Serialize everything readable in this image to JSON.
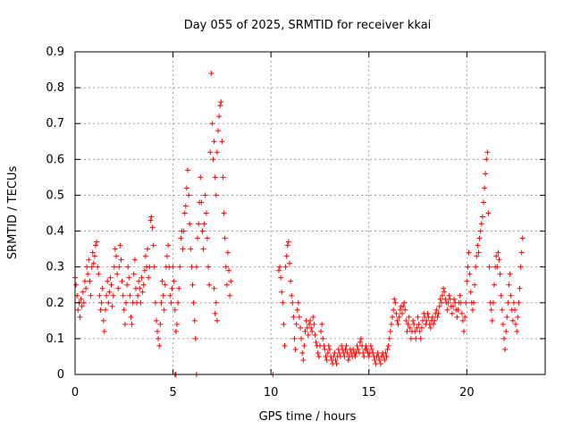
{
  "chart_data": {
    "type": "scatter",
    "title": "Day 055 of 2025, SRMTID for receiver kkai",
    "xlabel": "GPS time / hours",
    "ylabel": "SRMTID / TECUs",
    "xlim": [
      0,
      24
    ],
    "ylim": [
      0,
      0.9
    ],
    "grid": true,
    "marker": "+",
    "series_color": "#ff0000",
    "xticks": [
      0,
      5,
      10,
      15,
      20
    ],
    "xtick_labels": [
      "0",
      "5",
      "10",
      "15",
      "20"
    ],
    "yticks": [
      0,
      0.1,
      0.2,
      0.3,
      0.4,
      0.5,
      0.6,
      0.7,
      0.8,
      0.9
    ],
    "ytick_labels": [
      "0",
      "0.1",
      "0.2",
      "0.3",
      "0.4",
      "0.5",
      "0.6",
      "0.7",
      "0.8",
      "0.9"
    ],
    "points": [
      [
        0.0,
        0.27
      ],
      [
        0.05,
        0.25
      ],
      [
        0.1,
        0.22
      ],
      [
        0.15,
        0.18
      ],
      [
        0.2,
        0.2
      ],
      [
        0.25,
        0.16
      ],
      [
        0.3,
        0.21
      ],
      [
        0.35,
        0.19
      ],
      [
        0.4,
        0.23
      ],
      [
        0.45,
        0.2
      ],
      [
        0.5,
        0.26
      ],
      [
        0.55,
        0.24
      ],
      [
        0.6,
        0.3
      ],
      [
        0.65,
        0.28
      ],
      [
        0.7,
        0.32
      ],
      [
        0.75,
        0.26
      ],
      [
        0.8,
        0.22
      ],
      [
        0.85,
        0.3
      ],
      [
        0.9,
        0.34
      ],
      [
        0.95,
        0.31
      ],
      [
        1.0,
        0.33
      ],
      [
        1.05,
        0.36
      ],
      [
        1.1,
        0.37
      ],
      [
        1.15,
        0.3
      ],
      [
        1.2,
        0.28
      ],
      [
        1.25,
        0.22
      ],
      [
        1.3,
        0.18
      ],
      [
        1.35,
        0.2
      ],
      [
        1.4,
        0.24
      ],
      [
        1.45,
        0.15
      ],
      [
        1.5,
        0.12
      ],
      [
        1.55,
        0.18
      ],
      [
        1.6,
        0.22
      ],
      [
        1.65,
        0.26
      ],
      [
        1.7,
        0.2
      ],
      [
        1.75,
        0.23
      ],
      [
        1.8,
        0.27
      ],
      [
        1.85,
        0.25
      ],
      [
        1.9,
        0.19
      ],
      [
        1.95,
        0.22
      ],
      [
        2.0,
        0.3
      ],
      [
        2.05,
        0.35
      ],
      [
        2.1,
        0.33
      ],
      [
        2.15,
        0.28
      ],
      [
        2.2,
        0.24
      ],
      [
        2.25,
        0.3
      ],
      [
        2.3,
        0.36
      ],
      [
        2.35,
        0.32
      ],
      [
        2.4,
        0.26
      ],
      [
        2.45,
        0.22
      ],
      [
        2.5,
        0.18
      ],
      [
        2.55,
        0.14
      ],
      [
        2.6,
        0.2
      ],
      [
        2.65,
        0.25
      ],
      [
        2.7,
        0.3
      ],
      [
        2.75,
        0.27
      ],
      [
        2.8,
        0.22
      ],
      [
        2.85,
        0.16
      ],
      [
        2.9,
        0.14
      ],
      [
        2.95,
        0.2
      ],
      [
        3.0,
        0.28
      ],
      [
        3.05,
        0.32
      ],
      [
        3.1,
        0.24
      ],
      [
        3.15,
        0.2
      ],
      [
        3.2,
        0.22
      ],
      [
        3.25,
        0.26
      ],
      [
        3.3,
        0.24
      ],
      [
        3.35,
        0.2
      ],
      [
        3.4,
        0.27
      ],
      [
        3.45,
        0.23
      ],
      [
        3.5,
        0.25
      ],
      [
        3.55,
        0.29
      ],
      [
        3.6,
        0.33
      ],
      [
        3.65,
        0.3
      ],
      [
        3.7,
        0.35
      ],
      [
        3.75,
        0.27
      ],
      [
        3.8,
        0.3
      ],
      [
        3.85,
        0.43
      ],
      [
        3.9,
        0.44
      ],
      [
        3.95,
        0.41
      ],
      [
        4.0,
        0.36
      ],
      [
        4.05,
        0.3
      ],
      [
        4.1,
        0.2
      ],
      [
        4.15,
        0.15
      ],
      [
        4.2,
        0.12
      ],
      [
        4.25,
        0.1
      ],
      [
        4.3,
        0.08
      ],
      [
        4.35,
        0.14
      ],
      [
        4.4,
        0.2
      ],
      [
        4.45,
        0.26
      ],
      [
        4.5,
        0.22
      ],
      [
        4.55,
        0.18
      ],
      [
        4.6,
        0.25
      ],
      [
        4.65,
        0.3
      ],
      [
        4.7,
        0.33
      ],
      [
        4.75,
        0.36
      ],
      [
        4.8,
        0.3
      ],
      [
        4.85,
        0.22
      ],
      [
        4.9,
        0.2
      ],
      [
        4.95,
        0.24
      ],
      [
        5.0,
        0.3
      ],
      [
        5.05,
        0.26
      ],
      [
        5.1,
        0.18
      ],
      [
        5.15,
        0.12
      ],
      [
        5.2,
        0.14
      ],
      [
        5.25,
        0.2
      ],
      [
        5.3,
        0.24
      ],
      [
        5.35,
        0.3
      ],
      [
        5.4,
        0.38
      ],
      [
        5.45,
        0.4
      ],
      [
        5.5,
        0.35
      ],
      [
        5.55,
        0.4
      ],
      [
        5.6,
        0.45
      ],
      [
        5.65,
        0.47
      ],
      [
        5.7,
        0.52
      ],
      [
        5.75,
        0.57
      ],
      [
        5.8,
        0.5
      ],
      [
        5.85,
        0.42
      ],
      [
        5.9,
        0.35
      ],
      [
        5.95,
        0.3
      ],
      [
        6.0,
        0.25
      ],
      [
        6.05,
        0.2
      ],
      [
        6.1,
        0.15
      ],
      [
        6.15,
        0.1
      ],
      [
        6.2,
        0.3
      ],
      [
        6.25,
        0.38
      ],
      [
        6.3,
        0.42
      ],
      [
        6.35,
        0.48
      ],
      [
        6.4,
        0.55
      ],
      [
        6.45,
        0.48
      ],
      [
        6.5,
        0.4
      ],
      [
        6.55,
        0.35
      ],
      [
        6.6,
        0.42
      ],
      [
        6.65,
        0.5
      ],
      [
        6.7,
        0.45
      ],
      [
        6.75,
        0.38
      ],
      [
        6.8,
        0.3
      ],
      [
        6.85,
        0.25
      ],
      [
        6.9,
        0.62
      ],
      [
        6.95,
        0.84
      ],
      [
        7.0,
        0.7
      ],
      [
        7.05,
        0.6
      ],
      [
        7.1,
        0.65
      ],
      [
        7.15,
        0.55
      ],
      [
        7.2,
        0.5
      ],
      [
        7.25,
        0.62
      ],
      [
        7.3,
        0.68
      ],
      [
        7.35,
        0.72
      ],
      [
        7.4,
        0.75
      ],
      [
        7.45,
        0.76
      ],
      [
        7.5,
        0.65
      ],
      [
        7.55,
        0.55
      ],
      [
        7.6,
        0.45
      ],
      [
        7.65,
        0.38
      ],
      [
        7.7,
        0.3
      ],
      [
        7.75,
        0.25
      ],
      [
        7.8,
        0.34
      ],
      [
        7.85,
        0.29
      ],
      [
        7.9,
        0.22
      ],
      [
        7.95,
        0.26
      ],
      [
        7.15,
        0.17
      ],
      [
        7.2,
        0.2
      ],
      [
        7.1,
        0.24
      ],
      [
        7.25,
        0.15
      ],
      [
        5.1,
        0.0
      ],
      [
        5.15,
        0.0
      ],
      [
        6.2,
        0.0
      ],
      [
        10.1,
        0.0
      ],
      [
        10.4,
        0.29
      ],
      [
        10.45,
        0.3
      ],
      [
        10.5,
        0.27
      ],
      [
        10.55,
        0.23
      ],
      [
        10.6,
        0.2
      ],
      [
        10.65,
        0.14
      ],
      [
        10.7,
        0.08
      ],
      [
        10.75,
        0.3
      ],
      [
        10.8,
        0.33
      ],
      [
        10.85,
        0.36
      ],
      [
        10.9,
        0.37
      ],
      [
        10.95,
        0.31
      ],
      [
        11.0,
        0.26
      ],
      [
        11.05,
        0.22
      ],
      [
        11.1,
        0.2
      ],
      [
        11.15,
        0.16
      ],
      [
        11.2,
        0.1
      ],
      [
        11.25,
        0.07
      ],
      [
        11.3,
        0.14
      ],
      [
        11.35,
        0.18
      ],
      [
        11.4,
        0.2
      ],
      [
        11.45,
        0.16
      ],
      [
        11.5,
        0.13
      ],
      [
        11.55,
        0.1
      ],
      [
        11.6,
        0.06
      ],
      [
        11.65,
        0.04
      ],
      [
        11.7,
        0.08
      ],
      [
        11.75,
        0.12
      ],
      [
        11.8,
        0.15
      ],
      [
        11.85,
        0.13
      ],
      [
        11.9,
        0.11
      ],
      [
        11.95,
        0.14
      ],
      [
        12.0,
        0.15
      ],
      [
        12.05,
        0.13
      ],
      [
        12.1,
        0.12
      ],
      [
        12.15,
        0.16
      ],
      [
        12.2,
        0.14
      ],
      [
        12.25,
        0.11
      ],
      [
        12.3,
        0.09
      ],
      [
        12.35,
        0.08
      ],
      [
        12.4,
        0.06
      ],
      [
        12.45,
        0.05
      ],
      [
        12.5,
        0.08
      ],
      [
        12.55,
        0.12
      ],
      [
        12.6,
        0.14
      ],
      [
        12.65,
        0.1
      ],
      [
        12.7,
        0.08
      ],
      [
        12.75,
        0.07
      ],
      [
        12.8,
        0.05
      ],
      [
        12.85,
        0.04
      ],
      [
        12.9,
        0.06
      ],
      [
        12.95,
        0.08
      ],
      [
        13.0,
        0.07
      ],
      [
        13.05,
        0.05
      ],
      [
        13.1,
        0.04
      ],
      [
        13.15,
        0.03
      ],
      [
        13.2,
        0.05
      ],
      [
        13.25,
        0.06
      ],
      [
        13.3,
        0.04
      ],
      [
        13.35,
        0.03
      ],
      [
        13.4,
        0.05
      ],
      [
        13.45,
        0.07
      ],
      [
        13.5,
        0.06
      ],
      [
        13.55,
        0.05
      ],
      [
        13.6,
        0.08
      ],
      [
        13.65,
        0.07
      ],
      [
        13.7,
        0.06
      ],
      [
        13.75,
        0.05
      ],
      [
        13.8,
        0.07
      ],
      [
        13.85,
        0.08
      ],
      [
        13.9,
        0.06
      ],
      [
        13.95,
        0.04
      ],
      [
        14.0,
        0.05
      ],
      [
        14.05,
        0.07
      ],
      [
        14.1,
        0.06
      ],
      [
        14.15,
        0.05
      ],
      [
        14.2,
        0.07
      ],
      [
        14.25,
        0.06
      ],
      [
        14.3,
        0.05
      ],
      [
        14.35,
        0.06
      ],
      [
        14.4,
        0.08
      ],
      [
        14.45,
        0.07
      ],
      [
        14.5,
        0.06
      ],
      [
        14.55,
        0.09
      ],
      [
        14.6,
        0.1
      ],
      [
        14.65,
        0.08
      ],
      [
        14.7,
        0.06
      ],
      [
        14.75,
        0.05
      ],
      [
        14.8,
        0.07
      ],
      [
        14.85,
        0.08
      ],
      [
        14.9,
        0.07
      ],
      [
        14.95,
        0.06
      ],
      [
        15.0,
        0.05
      ],
      [
        15.05,
        0.06
      ],
      [
        15.1,
        0.08
      ],
      [
        15.15,
        0.07
      ],
      [
        15.2,
        0.06
      ],
      [
        15.25,
        0.05
      ],
      [
        15.3,
        0.04
      ],
      [
        15.35,
        0.03
      ],
      [
        15.4,
        0.05
      ],
      [
        15.45,
        0.06
      ],
      [
        15.5,
        0.05
      ],
      [
        15.55,
        0.04
      ],
      [
        15.6,
        0.03
      ],
      [
        15.65,
        0.05
      ],
      [
        15.7,
        0.06
      ],
      [
        15.75,
        0.05
      ],
      [
        15.8,
        0.04
      ],
      [
        15.85,
        0.06
      ],
      [
        15.9,
        0.05
      ],
      [
        15.95,
        0.07
      ],
      [
        16.0,
        0.08
      ],
      [
        16.05,
        0.1
      ],
      [
        16.1,
        0.12
      ],
      [
        16.15,
        0.14
      ],
      [
        16.2,
        0.16
      ],
      [
        16.25,
        0.18
      ],
      [
        16.3,
        0.21
      ],
      [
        16.35,
        0.2
      ],
      [
        16.4,
        0.17
      ],
      [
        16.45,
        0.15
      ],
      [
        16.5,
        0.14
      ],
      [
        16.55,
        0.16
      ],
      [
        16.6,
        0.18
      ],
      [
        16.65,
        0.19
      ],
      [
        16.7,
        0.17
      ],
      [
        16.75,
        0.19
      ],
      [
        16.8,
        0.2
      ],
      [
        16.85,
        0.18
      ],
      [
        16.9,
        0.15
      ],
      [
        16.95,
        0.12
      ],
      [
        17.0,
        0.14
      ],
      [
        17.05,
        0.16
      ],
      [
        17.1,
        0.13
      ],
      [
        17.15,
        0.1
      ],
      [
        17.2,
        0.12
      ],
      [
        17.25,
        0.15
      ],
      [
        17.3,
        0.14
      ],
      [
        17.35,
        0.12
      ],
      [
        17.4,
        0.1
      ],
      [
        17.45,
        0.13
      ],
      [
        17.5,
        0.16
      ],
      [
        17.55,
        0.14
      ],
      [
        17.6,
        0.12
      ],
      [
        17.65,
        0.1
      ],
      [
        17.7,
        0.13
      ],
      [
        17.75,
        0.15
      ],
      [
        17.8,
        0.17
      ],
      [
        17.85,
        0.16
      ],
      [
        17.9,
        0.14
      ],
      [
        17.95,
        0.15
      ],
      [
        18.0,
        0.17
      ],
      [
        18.05,
        0.16
      ],
      [
        18.1,
        0.14
      ],
      [
        18.15,
        0.13
      ],
      [
        18.2,
        0.15
      ],
      [
        18.25,
        0.16
      ],
      [
        18.3,
        0.14
      ],
      [
        18.35,
        0.15
      ],
      [
        18.4,
        0.17
      ],
      [
        18.45,
        0.18
      ],
      [
        18.5,
        0.16
      ],
      [
        18.55,
        0.17
      ],
      [
        18.6,
        0.19
      ],
      [
        18.65,
        0.21
      ],
      [
        18.7,
        0.2
      ],
      [
        18.75,
        0.22
      ],
      [
        18.8,
        0.24
      ],
      [
        18.85,
        0.23
      ],
      [
        18.9,
        0.21
      ],
      [
        18.95,
        0.2
      ],
      [
        19.0,
        0.18
      ],
      [
        19.05,
        0.2
      ],
      [
        19.1,
        0.22
      ],
      [
        19.15,
        0.21
      ],
      [
        19.2,
        0.19
      ],
      [
        19.25,
        0.17
      ],
      [
        19.3,
        0.19
      ],
      [
        19.35,
        0.21
      ],
      [
        19.4,
        0.2
      ],
      [
        19.45,
        0.18
      ],
      [
        19.5,
        0.16
      ],
      [
        19.55,
        0.18
      ],
      [
        19.6,
        0.2
      ],
      [
        19.65,
        0.22
      ],
      [
        19.7,
        0.2
      ],
      [
        19.75,
        0.17
      ],
      [
        19.8,
        0.15
      ],
      [
        19.85,
        0.12
      ],
      [
        19.9,
        0.16
      ],
      [
        19.95,
        0.2
      ],
      [
        20.0,
        0.26
      ],
      [
        20.05,
        0.3
      ],
      [
        20.1,
        0.34
      ],
      [
        20.15,
        0.28
      ],
      [
        20.2,
        0.23
      ],
      [
        20.25,
        0.2
      ],
      [
        20.3,
        0.18
      ],
      [
        20.35,
        0.2
      ],
      [
        20.4,
        0.25
      ],
      [
        20.45,
        0.3
      ],
      [
        20.5,
        0.33
      ],
      [
        20.55,
        0.36
      ],
      [
        20.6,
        0.34
      ],
      [
        20.65,
        0.38
      ],
      [
        20.7,
        0.4
      ],
      [
        20.75,
        0.42
      ],
      [
        20.8,
        0.44
      ],
      [
        20.85,
        0.48
      ],
      [
        20.9,
        0.52
      ],
      [
        20.95,
        0.56
      ],
      [
        21.0,
        0.6
      ],
      [
        21.05,
        0.62
      ],
      [
        21.1,
        0.45
      ],
      [
        21.15,
        0.3
      ],
      [
        21.2,
        0.2
      ],
      [
        21.25,
        0.18
      ],
      [
        21.3,
        0.15
      ],
      [
        21.35,
        0.2
      ],
      [
        21.4,
        0.25
      ],
      [
        21.45,
        0.3
      ],
      [
        21.5,
        0.33
      ],
      [
        21.55,
        0.3
      ],
      [
        21.6,
        0.34
      ],
      [
        21.65,
        0.32
      ],
      [
        21.7,
        0.28
      ],
      [
        21.75,
        0.22
      ],
      [
        21.8,
        0.18
      ],
      [
        21.85,
        0.14
      ],
      [
        21.9,
        0.1
      ],
      [
        21.95,
        0.07
      ],
      [
        22.0,
        0.12
      ],
      [
        22.05,
        0.16
      ],
      [
        22.1,
        0.2
      ],
      [
        22.15,
        0.25
      ],
      [
        22.2,
        0.28
      ],
      [
        22.25,
        0.22
      ],
      [
        22.3,
        0.18
      ],
      [
        22.35,
        0.15
      ],
      [
        22.4,
        0.2
      ],
      [
        22.45,
        0.18
      ],
      [
        22.5,
        0.14
      ],
      [
        22.55,
        0.12
      ],
      [
        22.6,
        0.16
      ],
      [
        22.65,
        0.2
      ],
      [
        22.7,
        0.24
      ],
      [
        22.75,
        0.3
      ],
      [
        22.8,
        0.34
      ],
      [
        22.85,
        0.38
      ]
    ]
  }
}
